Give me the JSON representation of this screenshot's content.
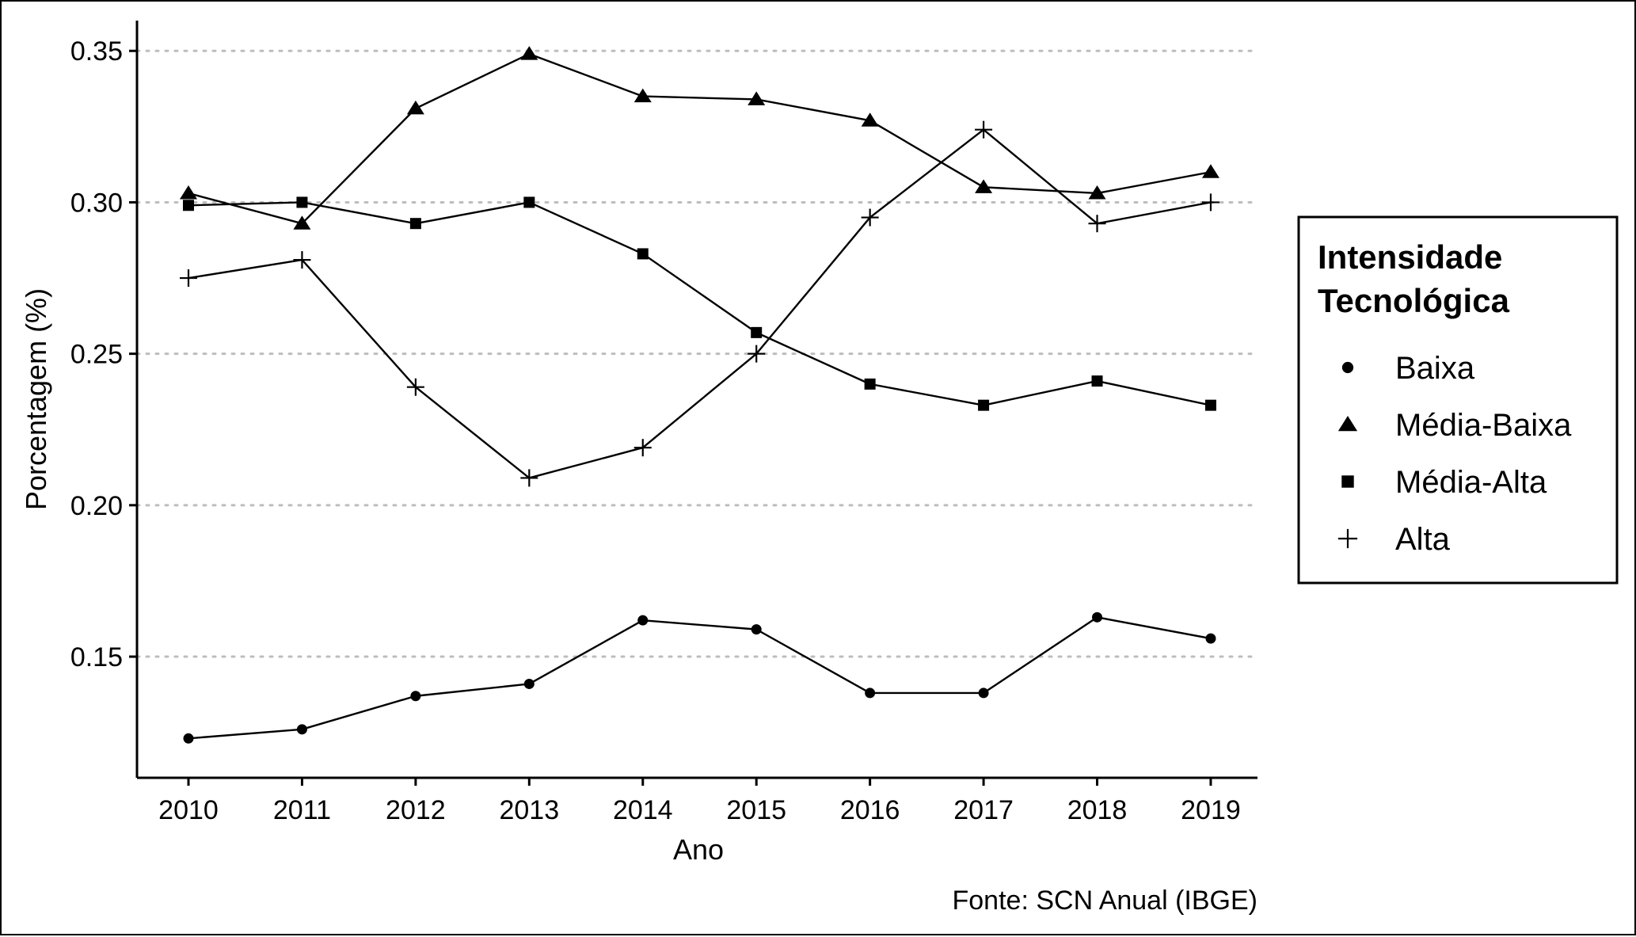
{
  "chart_data": {
    "type": "line",
    "x": [
      2010,
      2011,
      2012,
      2013,
      2014,
      2015,
      2016,
      2017,
      2018,
      2019
    ],
    "series": [
      {
        "name": "Baixa",
        "marker": "circle",
        "values": [
          0.123,
          0.126,
          0.137,
          0.141,
          0.162,
          0.159,
          0.138,
          0.138,
          0.163,
          0.156
        ]
      },
      {
        "name": "Média-Baixa",
        "marker": "triangle",
        "values": [
          0.303,
          0.293,
          0.331,
          0.349,
          0.335,
          0.334,
          0.327,
          0.305,
          0.303,
          0.31
        ]
      },
      {
        "name": "Média-Alta",
        "marker": "square",
        "values": [
          0.299,
          0.3,
          0.293,
          0.3,
          0.283,
          0.257,
          0.24,
          0.233,
          0.241,
          0.233
        ]
      },
      {
        "name": "Alta",
        "marker": "plus",
        "values": [
          0.275,
          0.281,
          0.239,
          0.209,
          0.219,
          0.25,
          0.295,
          0.324,
          0.293,
          0.3
        ]
      }
    ],
    "xlabel": "Ano",
    "ylabel": "Porcentagem (%)",
    "ylim": [
      0.11,
      0.36
    ],
    "yticks": [
      0.15,
      0.2,
      0.25,
      0.3,
      0.35
    ],
    "ytick_labels": [
      "0.15",
      "0.20",
      "0.25",
      "0.30",
      "0.35"
    ],
    "xtick_labels": [
      "2010",
      "2011",
      "2012",
      "2013",
      "2014",
      "2015",
      "2016",
      "2017",
      "2018",
      "2019"
    ],
    "grid": "horizontal-dotted",
    "legend": {
      "title_lines": [
        "Intensidade",
        "Tecnológica"
      ],
      "placement": "right"
    },
    "caption": "Fonte: SCN Anual (IBGE)",
    "colors": {
      "line": "#000000",
      "grid": "#bdbdbd"
    }
  }
}
